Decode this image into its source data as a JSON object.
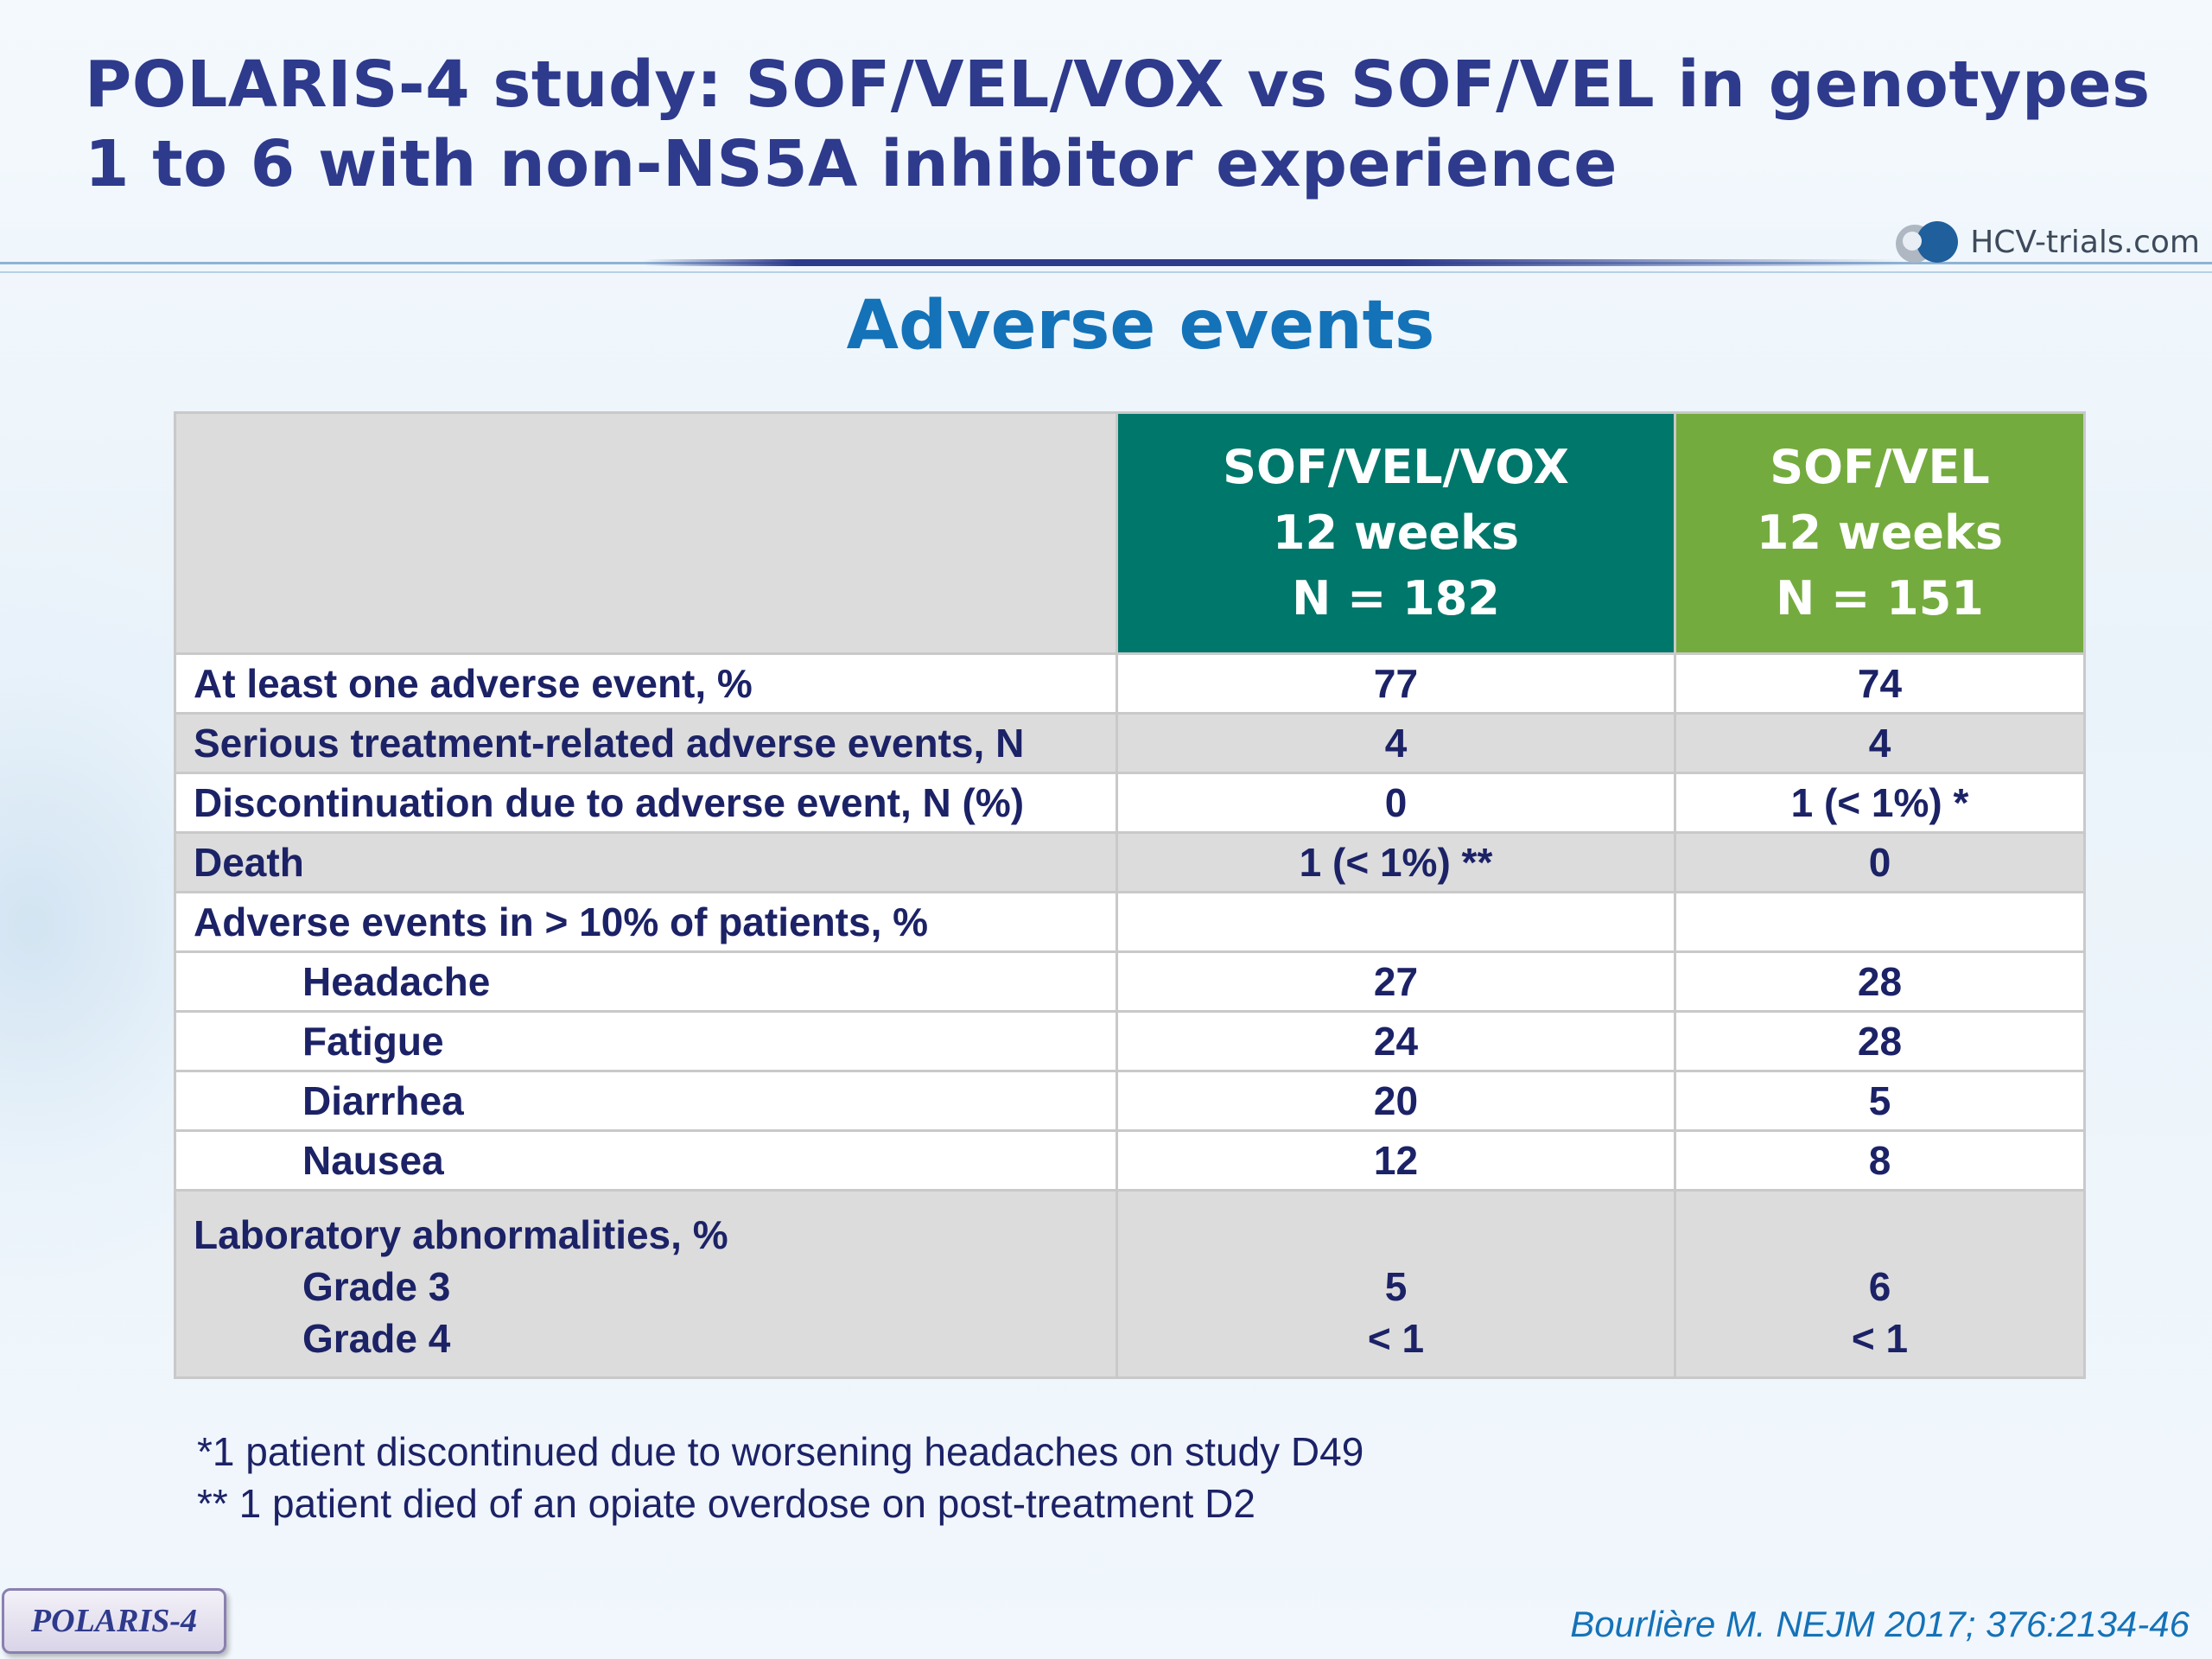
{
  "slide": {
    "title_line1": "POLARIS-4 study: SOF/VEL/VOX vs SOF/VEL in genotypes",
    "title_line2": "1 to 6 with non-NS5A inhibitor experience",
    "logo_text": "HCV-trials.com",
    "subtitle": "Adverse events",
    "badge": "POLARIS-4",
    "citation": "Bourlière M. NEJM 2017; 376:2134-46"
  },
  "colors": {
    "title": "#2e3a8c",
    "subtitle": "#1472b8",
    "header_sofvelvox": "#00776b",
    "header_sofvel": "#74ab3e",
    "row_grey": "#dcdcdc",
    "text": "#1c2266"
  },
  "table": {
    "headers": [
      {
        "line1": "SOF/VEL/VOX",
        "line2": "12 weeks",
        "line3": "N = 182"
      },
      {
        "line1": "SOF/VEL",
        "line2": "12 weeks",
        "line3": "N = 151"
      }
    ],
    "rows": [
      {
        "label": "At least one adverse event, %",
        "a": "77",
        "b": "74"
      },
      {
        "label": "Serious treatment-related adverse events, N",
        "a": "4",
        "b": "4"
      },
      {
        "label": "Discontinuation due to adverse event, N (%)",
        "a": "0",
        "b": "1 (< 1%) *"
      },
      {
        "label": "Death",
        "a": "1 (< 1%) **",
        "b": "0"
      },
      {
        "label": "Adverse events in > 10% of patients, %",
        "a": "",
        "b": ""
      },
      {
        "label": "Headache",
        "a": "27",
        "b": "28"
      },
      {
        "label": "Fatigue",
        "a": "24",
        "b": "28"
      },
      {
        "label": "Diarrhea",
        "a": "20",
        "b": "5"
      },
      {
        "label": "Nausea",
        "a": "12",
        "b": "8"
      }
    ],
    "lab": {
      "label": "Laboratory abnormalities, %",
      "grade3_label": "Grade 3",
      "grade4_label": "Grade 4",
      "a_grade3": "5",
      "a_grade4": "< 1",
      "b_grade3": "6",
      "b_grade4": "< 1"
    }
  },
  "footnotes": [
    "*1 patient discontinued due to worsening headaches on study D49",
    "** 1 patient died of an opiate overdose on post-treatment D2"
  ]
}
